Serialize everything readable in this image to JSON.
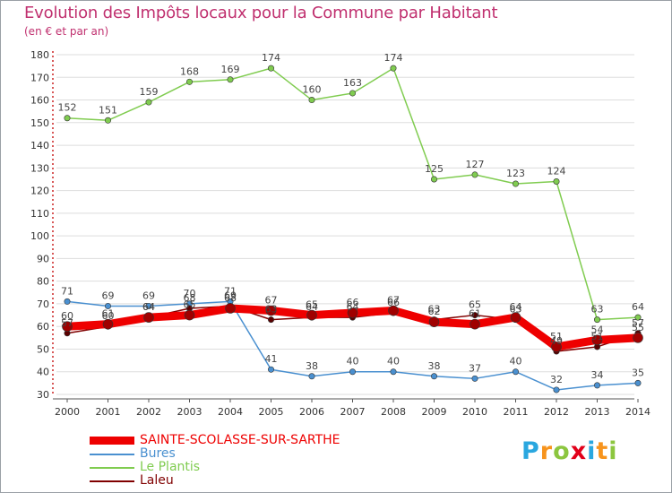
{
  "title": "Evolution des Impôts locaux pour la Commune par Habitant",
  "subtitle": "(en € et par an)",
  "logo": {
    "text": "Proxiti",
    "colors": [
      "#2aa7df",
      "#f7941d",
      "#8cc63f",
      "#e2001a",
      "#2aa7df",
      "#f7941d",
      "#8cc63f"
    ]
  },
  "chart_data": {
    "type": "line",
    "title": "Evolution des Impôts locaux pour la Commune par Habitant",
    "subtitle": "(en € et par an)",
    "xlabel": "",
    "ylabel": "",
    "x": [
      "2000",
      "2001",
      "2002",
      "2003",
      "2004",
      "2005",
      "2006",
      "2007",
      "2008",
      "2009",
      "2010",
      "2011",
      "2012",
      "2013",
      "2014"
    ],
    "ylim": [
      30,
      180
    ],
    "yticks": [
      30,
      40,
      50,
      60,
      70,
      80,
      90,
      100,
      110,
      120,
      130,
      140,
      150,
      160,
      170,
      180
    ],
    "grid": "horizontal",
    "legend_position": "bottom-left",
    "series": [
      {
        "name": "SAINTE-SCOLASSE-SUR-SARTHE",
        "color": "#ee0000",
        "values": [
          60,
          61,
          64,
          65,
          68,
          67,
          65,
          66,
          67,
          62,
          61,
          64,
          51,
          54,
          55
        ]
      },
      {
        "name": "Bures",
        "color": "#4a90d0",
        "values": [
          71,
          69,
          69,
          70,
          71,
          41,
          38,
          40,
          40,
          38,
          37,
          40,
          32,
          34,
          35
        ]
      },
      {
        "name": "Le Plantis",
        "color": "#80cc50",
        "values": [
          152,
          151,
          159,
          168,
          169,
          174,
          160,
          163,
          174,
          125,
          127,
          123,
          124,
          63,
          64
        ]
      },
      {
        "name": "Laleu",
        "color": "#800000",
        "values": [
          57,
          60,
          64,
          68,
          69,
          63,
          64,
          64,
          66,
          63,
          65,
          63,
          49,
          51,
          57
        ]
      }
    ]
  }
}
